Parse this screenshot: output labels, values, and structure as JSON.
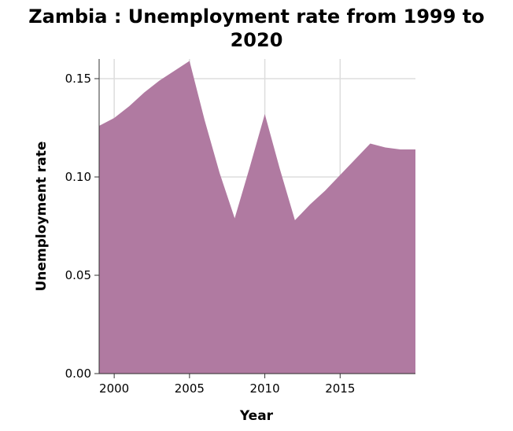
{
  "chart_data": {
    "type": "area",
    "title": "Zambia : Unemployment rate from 1999 to 2020",
    "xlabel": "Year",
    "ylabel": "Unemployment rate",
    "xlim": [
      1999,
      2020
    ],
    "ylim": [
      0,
      0.16
    ],
    "x_ticks": [
      2000,
      2005,
      2010,
      2015
    ],
    "x_tick_labels": [
      "2000",
      "2005",
      "2010",
      "2015"
    ],
    "y_ticks": [
      0,
      0.05,
      0.1,
      0.15
    ],
    "y_tick_labels": [
      "0.00",
      "0.05",
      "0.10",
      "0.15"
    ],
    "grid": true,
    "fill_color": "#b07aa1",
    "x": [
      1999,
      2000,
      2001,
      2002,
      2003,
      2004,
      2005,
      2006,
      2007,
      2008,
      2009,
      2010,
      2011,
      2012,
      2013,
      2014,
      2015,
      2016,
      2017,
      2018,
      2019,
      2020
    ],
    "y": [
      0.126,
      0.13,
      0.136,
      0.143,
      0.149,
      0.154,
      0.159,
      0.129,
      0.102,
      0.079,
      0.105,
      0.132,
      0.104,
      0.078,
      0.086,
      0.093,
      0.101,
      0.109,
      0.117,
      0.115,
      0.114,
      0.114
    ]
  }
}
